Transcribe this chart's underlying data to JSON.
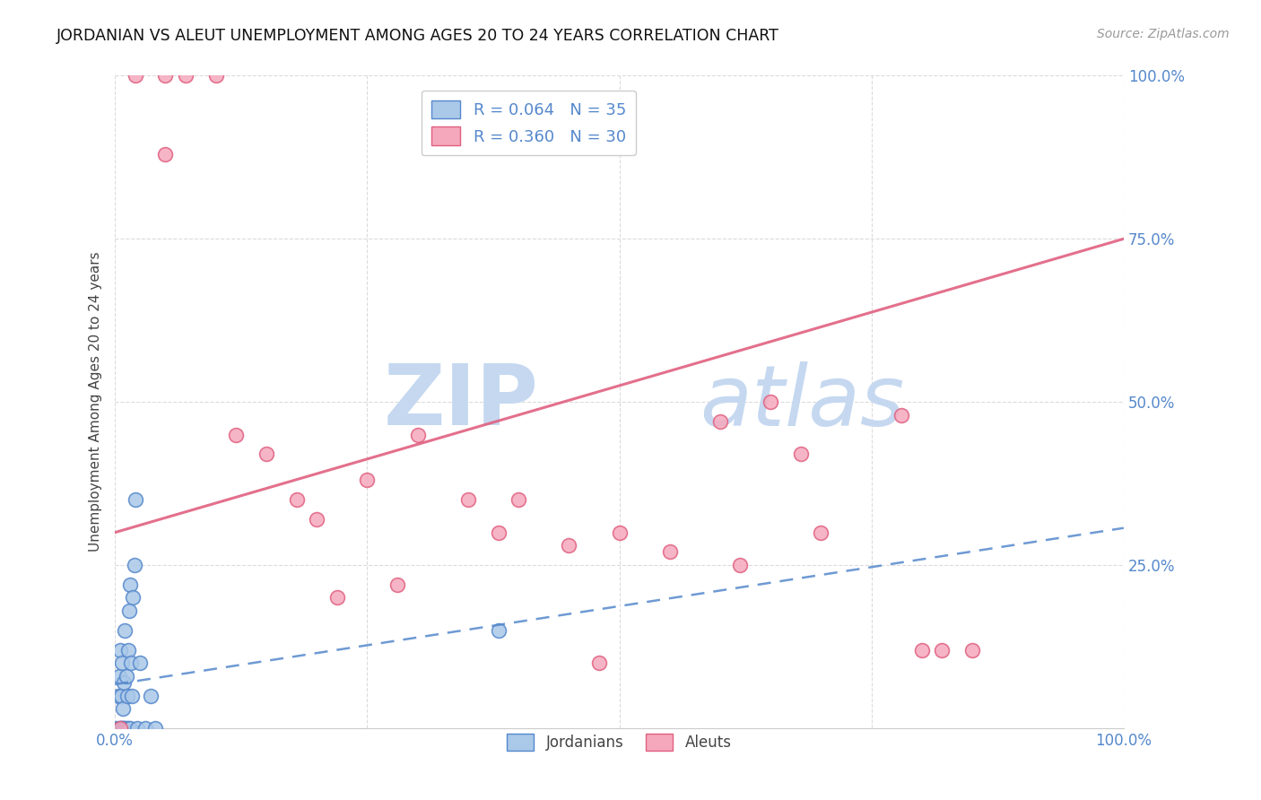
{
  "title": "JORDANIAN VS ALEUT UNEMPLOYMENT AMONG AGES 20 TO 24 YEARS CORRELATION CHART",
  "source": "Source: ZipAtlas.com",
  "ylabel": "Unemployment Among Ages 20 to 24 years",
  "xlim": [
    0,
    1
  ],
  "ylim": [
    0,
    1
  ],
  "jordanian_x": [
    0.002,
    0.003,
    0.004,
    0.004,
    0.005,
    0.005,
    0.006,
    0.006,
    0.007,
    0.007,
    0.008,
    0.008,
    0.009,
    0.009,
    0.01,
    0.01,
    0.011,
    0.011,
    0.012,
    0.013,
    0.013,
    0.014,
    0.015,
    0.015,
    0.016,
    0.017,
    0.018,
    0.019,
    0.02,
    0.022,
    0.025,
    0.03,
    0.035,
    0.04,
    0.38
  ],
  "jordanian_y": [
    0.0,
    0.05,
    0.0,
    0.08,
    0.0,
    0.12,
    0.0,
    0.05,
    0.0,
    0.1,
    0.0,
    0.03,
    0.0,
    0.07,
    0.0,
    0.15,
    0.0,
    0.08,
    0.05,
    0.0,
    0.12,
    0.18,
    0.0,
    0.22,
    0.1,
    0.05,
    0.2,
    0.25,
    0.35,
    0.0,
    0.1,
    0.0,
    0.05,
    0.0,
    0.15
  ],
  "aleut_x": [
    0.005,
    0.02,
    0.05,
    0.05,
    0.07,
    0.1,
    0.12,
    0.15,
    0.18,
    0.2,
    0.22,
    0.25,
    0.28,
    0.3,
    0.35,
    0.38,
    0.4,
    0.45,
    0.48,
    0.5,
    0.55,
    0.6,
    0.62,
    0.65,
    0.68,
    0.7,
    0.78,
    0.8,
    0.82,
    0.85
  ],
  "aleut_y": [
    0.0,
    1.0,
    1.0,
    0.88,
    1.0,
    1.0,
    0.45,
    0.42,
    0.35,
    0.32,
    0.2,
    0.38,
    0.22,
    0.45,
    0.35,
    0.3,
    0.35,
    0.28,
    0.1,
    0.3,
    0.27,
    0.47,
    0.25,
    0.5,
    0.42,
    0.3,
    0.48,
    0.12,
    0.12,
    0.12
  ],
  "jordanian_color": "#aac8e8",
  "aleut_color": "#f5a8bc",
  "jordanian_line_color": "#5588cc",
  "aleut_line_color": "#e06080",
  "watermark_top": "ZIP",
  "watermark_bottom": "atlas",
  "watermark_color": "#c5d8f0",
  "jordanian_R": "0.064",
  "jordanian_N": "35",
  "aleut_R": "0.360",
  "aleut_N": "30",
  "grid_color": "#d8d8d8",
  "background": "#ffffff",
  "tick_color": "#5588cc",
  "title_color": "#111111",
  "source_color": "#999999",
  "ylabel_color": "#444444"
}
